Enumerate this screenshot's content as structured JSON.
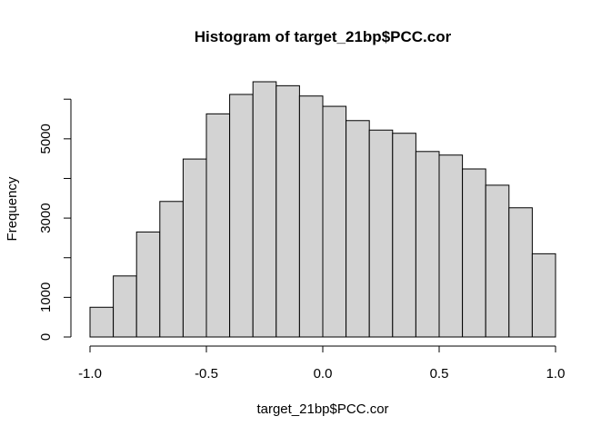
{
  "chart_data": {
    "type": "bar",
    "title": "Histogram of target_21bp$PCC.cor",
    "xlabel": "target_21bp$PCC.cor",
    "ylabel": "Frequency",
    "bin_edges": [
      -1.0,
      -0.9,
      -0.8,
      -0.7,
      -0.6,
      -0.5,
      -0.4,
      -0.3,
      -0.2,
      -0.1,
      0.0,
      0.1,
      0.2,
      0.3,
      0.4,
      0.5,
      0.6,
      0.7,
      0.8,
      0.9,
      1.0
    ],
    "values": [
      750,
      1540,
      2650,
      3420,
      4490,
      5630,
      6120,
      6440,
      6340,
      6080,
      5820,
      5460,
      5220,
      5140,
      4680,
      4590,
      4240,
      3830,
      3260,
      2100
    ],
    "xlim": [
      -1.0,
      1.0
    ],
    "ylim": [
      0,
      6440
    ],
    "x_ticks": [
      -1.0,
      -0.5,
      0.0,
      0.5,
      1.0
    ],
    "x_tick_labels": [
      "-1.0",
      "-0.5",
      "0.0",
      "0.5",
      "1.0"
    ],
    "y_ticks": [
      0,
      1000,
      2000,
      3000,
      4000,
      5000,
      6000
    ],
    "y_tick_labels": [
      "0",
      "1000",
      "",
      "3000",
      "",
      "5000",
      ""
    ],
    "bar_fill": "#d3d3d3",
    "bar_stroke": "#000000",
    "grid": false,
    "legend": "none"
  }
}
